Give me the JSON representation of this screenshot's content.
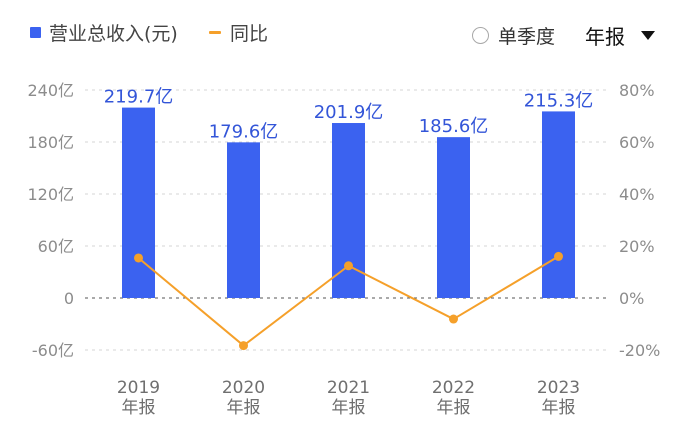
{
  "legend": {
    "bar_label": "营业总收入(元)",
    "line_label": "同比"
  },
  "controls": {
    "single_quarter_label": "单季度",
    "period_select_value": "年报"
  },
  "colors": {
    "bar": "#3b62f0",
    "line": "#f5a02a",
    "axis_text": "#8c8c8c",
    "value_label": "#3355d8"
  },
  "chart_data": {
    "type": "bar",
    "categories": [
      "2019\n年报",
      "2020\n年报",
      "2021\n年报",
      "2022\n年报",
      "2023\n年报"
    ],
    "series": [
      {
        "name": "营业总收入(元)",
        "type": "bar",
        "axis": "left",
        "values": [
          219.7,
          179.6,
          201.9,
          185.6,
          215.3
        ],
        "labels": [
          "219.7亿",
          "179.6亿",
          "201.9亿",
          "185.6亿",
          "215.3亿"
        ]
      },
      {
        "name": "同比",
        "type": "line",
        "axis": "right",
        "values": [
          15.4,
          -18.3,
          12.4,
          -8.1,
          16.0
        ]
      }
    ],
    "y_left": {
      "ticks": [
        "240亿",
        "180亿",
        "120亿",
        "60亿",
        "0",
        "-60亿"
      ],
      "ylim": [
        -60,
        240
      ]
    },
    "y_right": {
      "ticks": [
        "80%",
        "60%",
        "40%",
        "20%",
        "0%",
        "-20%"
      ],
      "ylim": [
        -20,
        80
      ]
    },
    "zero_line": "dashed",
    "grid": "dashed"
  }
}
